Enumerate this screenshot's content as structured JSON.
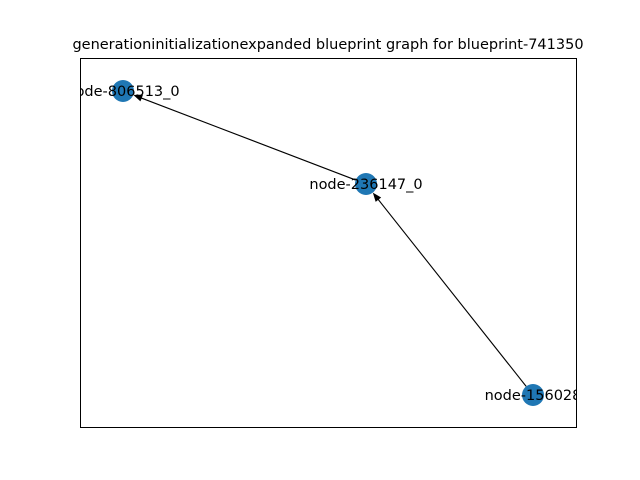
{
  "title": "generationinitializationexpanded blueprint graph for blueprint-741350",
  "colors": {
    "node": "#1f77b4",
    "edge": "#000000",
    "frame": "#000000",
    "background": "#ffffff"
  },
  "nodes": [
    {
      "id": "node-806513_0",
      "label": "node-806513_0"
    },
    {
      "id": "node-236147_0",
      "label": "node-236147_0"
    },
    {
      "id": "node-156028",
      "label": "node-156028"
    }
  ],
  "edges": [
    {
      "from": "node-236147_0",
      "to": "node-806513_0"
    },
    {
      "from": "node-156028",
      "to": "node-236147_0"
    }
  ]
}
